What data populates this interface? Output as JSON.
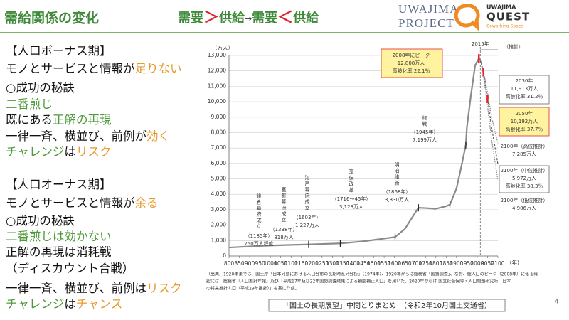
{
  "header": {
    "title": "需給関係の変化",
    "subtitle": [
      {
        "text": "需要",
        "color": "#3f8a3a"
      },
      {
        "text": "＞",
        "color": "#e0262e"
      },
      {
        "text": "供給",
        "color": "#3f8a3a"
      },
      {
        "text": "→",
        "color": "#333333"
      },
      {
        "text": "需要",
        "color": "#3f8a3a"
      },
      {
        "text": "＜",
        "color": "#e0262e"
      },
      {
        "text": "供給",
        "color": "#3f8a3a"
      }
    ]
  },
  "logos": {
    "project": [
      "UWAJIMA",
      "PROJECT"
    ],
    "quest": [
      "UWAJIMA",
      "QUEST",
      "Coworking Space"
    ]
  },
  "left": {
    "lines": [
      [
        {
          "text": "【人口ボーナス期】"
        }
      ],
      [
        {
          "text": "モノとサービスと情報が"
        },
        {
          "text": "足りない",
          "color": "#e89a2c"
        }
      ],
      [
        {
          "text": "○成功の秘訣"
        }
      ],
      [
        {
          "text": "二番煎じ",
          "color": "#4f9a3a"
        }
      ],
      [
        {
          "text": "既にある"
        },
        {
          "text": "正解の再現",
          "color": "#4f9a3a"
        }
      ],
      [
        {
          "text": "一律一斉、横並び、前例が"
        },
        {
          "text": "効く",
          "color": "#e89a2c"
        }
      ],
      [
        {
          "text": "チャレンジ",
          "color": "#4f9a3a"
        },
        {
          "text": "は"
        },
        {
          "text": "リスク",
          "color": "#e89a2c"
        }
      ],
      [
        {
          "text": "【人口オーナス期】"
        }
      ],
      [
        {
          "text": "モノとサービスと情報が"
        },
        {
          "text": "余る",
          "color": "#e89a2c"
        }
      ],
      [
        {
          "text": "○成功の秘訣"
        }
      ],
      [
        {
          "text": "二番煎じは効かない",
          "color": "#4f9a3a"
        }
      ],
      [
        {
          "text": "正解の再現は消耗戦"
        }
      ],
      [
        {
          "text": "（ディスカウント合戦）"
        }
      ],
      [
        {
          "text": "一律一斉、横並び、前例は"
        },
        {
          "text": "リスク",
          "color": "#e89a2c"
        }
      ],
      [
        {
          "text": "チャレンジ",
          "color": "#4f9a3a"
        },
        {
          "text": "は"
        },
        {
          "text": "チャンス",
          "color": "#e89a2c"
        }
      ]
    ]
  },
  "chart_data": {
    "type": "line",
    "y_label": "（万人）",
    "x_label": "（年）",
    "xlim": [
      800,
      2100
    ],
    "ylim": [
      0,
      13000
    ],
    "xticks": [
      800,
      850,
      900,
      950,
      1000,
      1050,
      1100,
      1150,
      1200,
      1250,
      1300,
      1350,
      1400,
      1450,
      1500,
      1550,
      1600,
      1650,
      1700,
      1750,
      1800,
      1850,
      1900,
      1950,
      2000,
      2050,
      2100
    ],
    "yticks": [
      0,
      {
        "value": 1000,
        "label": "1,000"
      },
      {
        "value": 2000,
        "label": "2,000"
      },
      {
        "value": 3000,
        "label": "3,000"
      },
      {
        "value": 4000,
        "label": "4,000"
      },
      {
        "value": 5000,
        "label": "5,000"
      },
      {
        "value": 6000,
        "label": "6,000"
      },
      {
        "value": 7000,
        "label": "7,000"
      },
      {
        "value": 8000,
        "label": "8,000"
      },
      {
        "value": 9000,
        "label": "9,000"
      },
      {
        "value": 10000,
        "label": "10,000"
      },
      {
        "value": 11000,
        "label": "11,000"
      },
      {
        "value": 12000,
        "label": "12,000"
      },
      {
        "value": 13000,
        "label": "13,000"
      }
    ],
    "grid": true,
    "series": [
      {
        "color": "#8a8a8a",
        "style": "solid",
        "x": [
          800,
          900,
          1000,
          1100,
          1185,
          1250,
          1338,
          1450,
          1603,
          1650,
          1700,
          1716,
          1750,
          1800,
          1850,
          1868,
          1900,
          1920,
          1945,
          1950,
          1970,
          1990,
          2008,
          2015
        ],
        "values": [
          550,
          620,
          680,
          720,
          750,
          780,
          818,
          950,
          1227,
          1750,
          2800,
          3128,
          3110,
          3065,
          3230,
          3330,
          4385,
          5596,
          7199,
          8320,
          10467,
          12361,
          12808,
          12709
        ]
      },
      {
        "color": "#888888",
        "style": "dotted",
        "x": [
          2015,
          2030,
          2050,
          2070,
          2100
        ],
        "values": [
          12709,
          12050,
          10600,
          9000,
          7285
        ]
      },
      {
        "color": "#555555",
        "style": "dashed",
        "x": [
          2015,
          2030,
          2050,
          2070,
          2100
        ],
        "values": [
          12709,
          11913,
          10192,
          8300,
          5972
        ]
      },
      {
        "color": "#888888",
        "style": "dotted",
        "x": [
          2015,
          2030,
          2050,
          2070,
          2100
        ],
        "values": [
          12709,
          11700,
          9700,
          7500,
          4906
        ]
      }
    ],
    "annotations": [
      [
        "鎌倉幕府成立",
        "（1185年）",
        "750万人程度"
      ],
      [
        "室町幕府成立",
        "（1338年）",
        "818万人"
      ],
      [
        "江戸幕府成立",
        "（1603年）",
        "1,227万人"
      ],
      [
        "享保改革",
        "（1716～45年）",
        "3,128万人"
      ],
      [
        "明治維新",
        "（1868年）",
        "3,330万人"
      ],
      [
        "終戦",
        "（1945年）",
        "7,199万人"
      ],
      [
        "2008年にピーク",
        "12,808万人",
        "高齢化率 22.1％"
      ],
      [
        "2030年",
        "11,913万人",
        "高齢化率 31.2％"
      ],
      [
        "2050年",
        "10,192万人",
        "高齢化率 37.7％"
      ],
      [
        "2100年（高位推計）",
        "7,285万人"
      ],
      [
        "2100年（中位推計）",
        "5,972万人",
        "高齢化率 38.3％"
      ],
      [
        "2100年（低位推計）",
        "4,906万人"
      ]
    ],
    "boundary_label": "2015年",
    "forecast_label": "（推計）"
  },
  "source": [
    "（出典）1920年までは、国土庁「日本列島における人口分布の長期時系列分析」（1974年）、1920年からは総務省「国勢調査」、なお、総人口のピーク（2008年）に係る確",
    "認には、総務省「人口推計年報」及び「平成17年及び22年国勢調査結果による補間補正人口」を用いた。2020年からは 国立社会保障・人口問題研究所「日本",
    "の将来推計人口（平成29年推計）」を基に作成。"
  ],
  "caption": "「国土の長期展望」中間とりまとめ　（令和2年10月国土交通省）",
  "page_number": "4"
}
